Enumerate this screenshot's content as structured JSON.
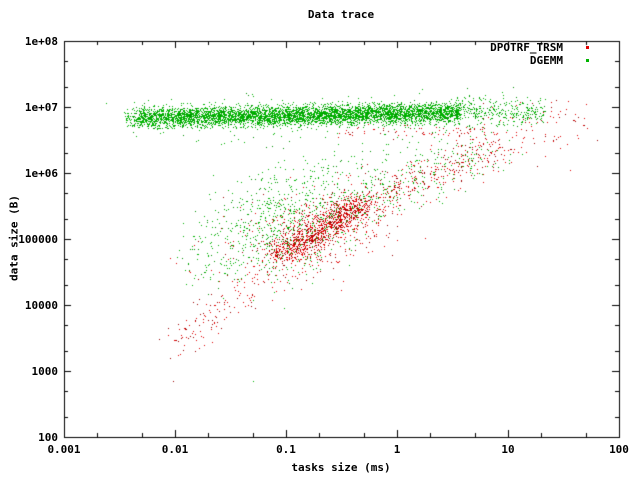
{
  "window": {
    "title": "Data trace"
  },
  "colors": {
    "background": "#ffffff",
    "text": "#000000",
    "frame": "#000000",
    "dpotrf_red": "#e10000",
    "dpotrf_red_dark": "#9b0000",
    "dgemm_green": "#00b400",
    "dgemm_green_dark": "#009100"
  },
  "chart_data": {
    "type": "scatter",
    "title": "Data trace",
    "xlabel": "tasks size (ms)",
    "ylabel": "data size (B)",
    "x_scale": "log",
    "y_scale": "log",
    "xlim": [
      0.001,
      100
    ],
    "ylim": [
      100,
      100000000
    ],
    "grid": false,
    "legend_position": "top-right-inside",
    "x_ticks": [
      "0.001",
      "0.01",
      "0.1",
      "1",
      "10",
      "100"
    ],
    "y_ticks": [
      "100",
      "1000",
      "10000",
      "100000",
      "1e+06",
      "1e+07",
      "1e+08"
    ],
    "minor_tick_multiples": [
      2,
      5
    ],
    "legend": [
      {
        "name": "DPOTRF_TRSM",
        "color": "#e10000"
      },
      {
        "name": "DGEMM",
        "color": "#00b400"
      }
    ],
    "series": [
      {
        "name": "DPOTRF_TRSM",
        "color": "#e10000",
        "shade": "#9b0000",
        "shade_ratio": 0.35,
        "marker": "dot",
        "clusters": [
          {
            "type": "line",
            "count": 1050,
            "from": [
              -1.05,
              4.78
            ],
            "to": [
              -0.3,
              5.55
            ],
            "jx": 0.1,
            "jy": 0.1
          },
          {
            "type": "line",
            "count": 360,
            "from": [
              -1.05,
              4.78
            ],
            "to": [
              -0.3,
              5.55
            ],
            "jx": 0.24,
            "jy": 0.22
          },
          {
            "type": "line",
            "count": 340,
            "from": [
              -0.3,
              5.55
            ],
            "to": [
              0.95,
              6.4
            ],
            "jx": 0.14,
            "jy": 0.14
          },
          {
            "type": "line",
            "count": 50,
            "from": [
              0.95,
              6.4
            ],
            "to": [
              1.6,
              6.8
            ],
            "jx": 0.15,
            "jy": 0.2
          },
          {
            "type": "line",
            "count": 135,
            "from": [
              -2.0,
              3.38
            ],
            "to": [
              -1.05,
              4.72
            ],
            "jx": 0.09,
            "jy": 0.13
          },
          {
            "type": "band",
            "count": 70,
            "lx": [
              -0.55,
              0.8
            ],
            "ly_base": 6.64,
            "ly_slope": 0,
            "ly_sigma": 0.05,
            "ly_clip": [
              6.5,
              6.78
            ]
          },
          {
            "type": "cloud",
            "count": 170,
            "cx": -0.85,
            "sx": 0.55,
            "cy": 5.05,
            "corr": 0.7,
            "sy": 0.45,
            "clip_x": [
              -2.1,
              0.4
            ],
            "clip_y": [
              3.3,
              6.25
            ]
          },
          {
            "type": "band",
            "count": 28,
            "lx": [
              0.75,
              1.72
            ],
            "ly_base": 6.85,
            "ly_slope": 0,
            "ly_sigma": 0.17,
            "ly_clip": [
              6.5,
              7.2
            ]
          },
          {
            "type": "points",
            "pts": [
              [
                -2.02,
                2.85
              ],
              [
                1.7,
                7.05
              ],
              [
                1.56,
                6.04
              ],
              [
                1.45,
                6.55
              ]
            ]
          }
        ]
      },
      {
        "name": "DGEMM",
        "color": "#00b400",
        "shade": "#009100",
        "shade_ratio": 0.2,
        "marker": "dot",
        "clusters": [
          {
            "type": "band",
            "count": 5200,
            "lx": [
              -2.33,
              0.57
            ],
            "ly_base": 6.84,
            "ly_slope": 0.028,
            "ly_sigma": 0.075,
            "ly_clip": [
              6.67,
              7.17
            ]
          },
          {
            "type": "band",
            "count": 70,
            "lx": [
              -2.46,
              -2.33
            ],
            "ly_base": 6.82,
            "ly_slope": 0,
            "ly_sigma": 0.09,
            "ly_clip": [
              6.7,
              7.1
            ]
          },
          {
            "type": "band",
            "count": 280,
            "lx": [
              0.57,
              1.33
            ],
            "ly_base": 6.92,
            "ly_slope": 0,
            "ly_sigma": 0.1,
            "ly_clip": [
              6.62,
              7.2
            ]
          },
          {
            "type": "band",
            "count": 240,
            "lx": [
              -2.4,
              1.1
            ],
            "ly_base": 6.86,
            "ly_slope": 0,
            "ly_sigma": 0.17,
            "ly_clip": [
              6.4,
              7.35
            ]
          },
          {
            "type": "cloud",
            "count": 780,
            "cx": -1.02,
            "sx": 0.43,
            "cy": 5.28,
            "corr": 0.55,
            "sy": 0.4,
            "clip_x": [
              -2.0,
              0.12
            ],
            "clip_y": [
              4.1,
              6.35
            ]
          },
          {
            "type": "line",
            "count": 210,
            "from": [
              -0.4,
              5.45
            ],
            "to": [
              0.78,
              6.35
            ],
            "jx": 0.2,
            "jy": 0.16
          },
          {
            "type": "uniform",
            "count": 55,
            "lx": [
              -1.7,
              0.9
            ],
            "ly": [
              5.9,
              6.6
            ]
          },
          {
            "type": "points",
            "pts": [
              [
                -2.62,
                7.06
              ],
              [
                -1.5,
                6.48
              ],
              [
                -1.3,
                2.85
              ],
              [
                -1.3,
                4.07
              ],
              [
                -1.08,
                4.4
              ],
              [
                -1.02,
                3.96
              ]
            ]
          }
        ]
      }
    ]
  }
}
